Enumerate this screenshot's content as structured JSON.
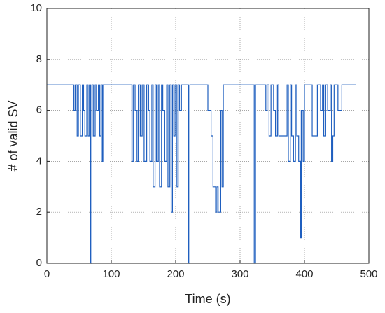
{
  "chart_data": {
    "type": "line",
    "xlabel": "Time (s)",
    "ylabel": "# of valid SV",
    "xlim": [
      0,
      500
    ],
    "xticks": [
      0,
      100,
      200,
      300,
      400,
      500
    ],
    "ylim": [
      0,
      10
    ],
    "yticks": [
      0,
      2,
      4,
      6,
      8,
      10
    ],
    "grid": true,
    "series": [
      {
        "color": "#1f5fbf",
        "x": [
          0,
          42,
          42,
          44,
          44,
          47,
          47,
          49,
          49,
          52,
          52,
          55,
          55,
          57,
          57,
          59,
          59,
          62,
          62,
          64,
          64,
          66,
          66,
          68,
          68,
          70,
          70,
          72,
          72,
          75,
          75,
          77,
          77,
          80,
          80,
          82,
          82,
          84,
          84,
          86,
          86,
          87,
          87,
          132,
          132,
          134,
          134,
          137,
          137,
          140,
          140,
          142,
          142,
          145,
          145,
          148,
          148,
          151,
          151,
          155,
          155,
          158,
          158,
          160,
          160,
          163,
          163,
          165,
          165,
          168,
          168,
          170,
          170,
          173,
          173,
          175,
          175,
          178,
          178,
          180,
          180,
          183,
          183,
          186,
          186,
          188,
          188,
          191,
          191,
          193,
          193,
          195,
          195,
          197,
          197,
          199,
          199,
          202,
          202,
          204,
          204,
          206,
          206,
          209,
          209,
          220,
          220,
          222,
          222,
          250,
          250,
          255,
          255,
          258,
          258,
          262,
          262,
          264,
          264,
          266,
          266,
          270,
          270,
          272,
          272,
          274,
          274,
          322,
          322,
          324,
          324,
          340,
          340,
          342,
          342,
          345,
          345,
          348,
          348,
          352,
          352,
          355,
          355,
          358,
          358,
          360,
          360,
          373,
          373,
          375,
          375,
          378,
          378,
          380,
          380,
          383,
          383,
          386,
          386,
          388,
          388,
          391,
          391,
          394,
          394,
          395,
          395,
          398,
          398,
          400,
          400,
          412,
          412,
          420,
          420,
          425,
          425,
          428,
          428,
          430,
          430,
          433,
          433,
          436,
          436,
          440,
          440,
          442,
          442,
          444,
          444,
          446,
          446,
          452,
          452,
          458,
          458,
          480
        ],
        "values": [
          7,
          7,
          6,
          6,
          7,
          7,
          5,
          5,
          7,
          7,
          5,
          5,
          7,
          7,
          6,
          6,
          5,
          5,
          7,
          7,
          5,
          5,
          7,
          7,
          0,
          0,
          7,
          7,
          5,
          5,
          7,
          7,
          6,
          6,
          7,
          7,
          5,
          5,
          7,
          7,
          4,
          4,
          7,
          7,
          4,
          4,
          7,
          7,
          6,
          6,
          4,
          4,
          7,
          7,
          5,
          5,
          7,
          7,
          4,
          4,
          7,
          7,
          6,
          6,
          4,
          4,
          7,
          7,
          3,
          3,
          7,
          7,
          4,
          4,
          7,
          7,
          3,
          3,
          7,
          7,
          6,
          6,
          4,
          4,
          7,
          7,
          3,
          3,
          7,
          7,
          2,
          2,
          7,
          7,
          5,
          5,
          7,
          7,
          3,
          3,
          7,
          7,
          6,
          6,
          7,
          7,
          0,
          0,
          7,
          7,
          6,
          6,
          5,
          5,
          3,
          3,
          2,
          2,
          3,
          3,
          2,
          2,
          6,
          6,
          3,
          3,
          7,
          7,
          0,
          0,
          7,
          7,
          6,
          6,
          7,
          7,
          5,
          5,
          7,
          7,
          6,
          6,
          5,
          5,
          7,
          7,
          5,
          5,
          7,
          7,
          4,
          4,
          7,
          7,
          5,
          5,
          4,
          4,
          7,
          7,
          5,
          5,
          4,
          4,
          1,
          1,
          6,
          6,
          4,
          4,
          7,
          7,
          5,
          5,
          7,
          7,
          6,
          6,
          7,
          7,
          5,
          5,
          7,
          7,
          6,
          6,
          7,
          7,
          4,
          4,
          5,
          5,
          7,
          7,
          6,
          6,
          7,
          7
        ]
      }
    ]
  }
}
